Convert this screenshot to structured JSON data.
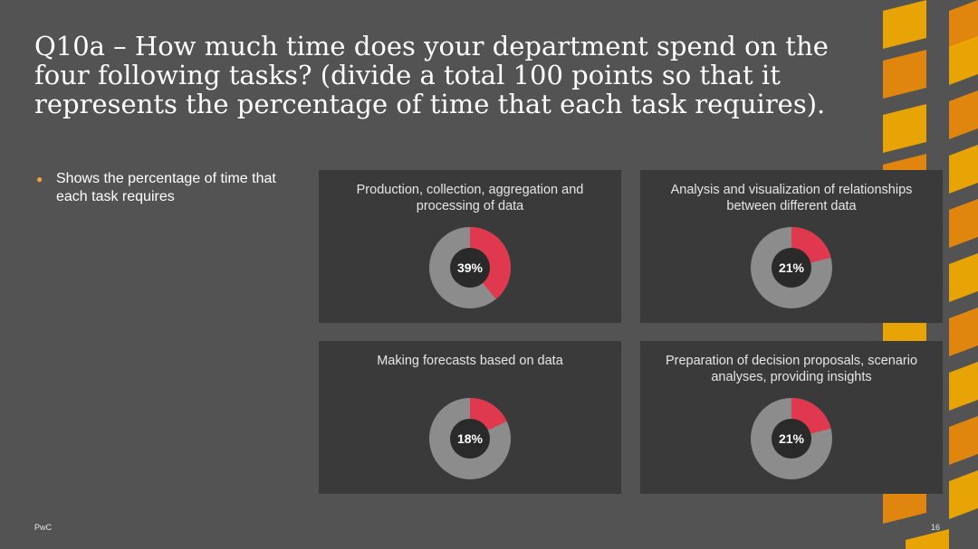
{
  "slide": {
    "title": "Q10a – How much time does your department spend on the four following tasks? (divide a total 100 points so that it represents the percentage of time that each task requires).",
    "bullet": "Shows the percentage of time that each task requires",
    "footer_left": "PwC",
    "page_number": "16"
  },
  "colors": {
    "background": "#535353",
    "panel": "#3a3a3a",
    "highlight": "#e0384f",
    "remainder": "#8c8c8c",
    "hole": "#2a2a2a",
    "accent_orange": "#e8890c",
    "accent_yellow": "#f0a800"
  },
  "chart_data": [
    {
      "type": "pie",
      "title": "Production, collection, aggregation and processing of data",
      "values": [
        39,
        61
      ],
      "label": "39%"
    },
    {
      "type": "pie",
      "title": "Analysis and visualization of relationships between different data",
      "values": [
        21,
        79
      ],
      "label": "21%"
    },
    {
      "type": "pie",
      "title": "Making forecasts based on data",
      "values": [
        18,
        82
      ],
      "label": "18%"
    },
    {
      "type": "pie",
      "title": "Preparation of decision proposals, scenario analyses, providing insights",
      "values": [
        21,
        79
      ],
      "label": "21%"
    }
  ]
}
